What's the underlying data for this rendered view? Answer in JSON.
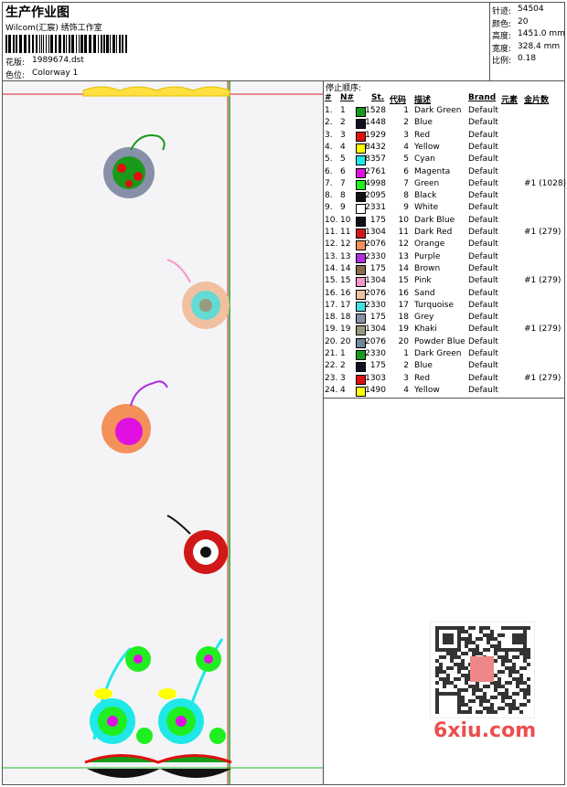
{
  "header": {
    "title": "生产作业图",
    "studio": "Wilcom(汇宸) 绣饰工作室",
    "design_label": "花版:",
    "design": "1989674.dst",
    "colorway_label": "色位:",
    "colorway": "Colorway 1"
  },
  "stats": [
    {
      "label": "针迹:",
      "value": "54504"
    },
    {
      "label": "颜色:",
      "value": "20"
    },
    {
      "label": "高度:",
      "value": "1451.0 mm"
    },
    {
      "label": "宽度:",
      "value": "328.4 mm"
    },
    {
      "label": "比例:",
      "value": "0.18"
    }
  ],
  "sequence": {
    "title": "停止顺序:",
    "columns": [
      "#",
      "N#",
      "St.",
      "代码",
      "描述",
      "Brand",
      "元素",
      "金片数"
    ],
    "rows": [
      {
        "num": "1.",
        "n": 1,
        "color": "#1a9a1a",
        "st": 1528,
        "code": 1,
        "desc": "Dark Green",
        "brand": "Default"
      },
      {
        "num": "2.",
        "n": 2,
        "color": "#111122",
        "st": 1448,
        "code": 2,
        "desc": "Blue",
        "brand": "Default"
      },
      {
        "num": "3.",
        "n": 3,
        "color": "#e01010",
        "st": 1929,
        "code": 3,
        "desc": "Red",
        "brand": "Default"
      },
      {
        "num": "4.",
        "n": 4,
        "color": "#ffff00",
        "st": 8432,
        "code": 4,
        "desc": "Yellow",
        "brand": "Default"
      },
      {
        "num": "5.",
        "n": 5,
        "color": "#20e8e8",
        "st": 8357,
        "code": 5,
        "desc": "Cyan",
        "brand": "Default"
      },
      {
        "num": "6.",
        "n": 6,
        "color": "#e010e0",
        "st": 2761,
        "code": 6,
        "desc": "Magenta",
        "brand": "Default"
      },
      {
        "num": "7.",
        "n": 7,
        "color": "#20ee20",
        "st": 4998,
        "code": 7,
        "desc": "Green",
        "brand": "Default",
        "elem": "#1 (1028)"
      },
      {
        "num": "8.",
        "n": 8,
        "color": "#111111",
        "st": 2095,
        "code": 8,
        "desc": "Black",
        "brand": "Default"
      },
      {
        "num": "9.",
        "n": 9,
        "color": "#ffffff",
        "st": 2331,
        "code": 9,
        "desc": "White",
        "brand": "Default"
      },
      {
        "num": "10.",
        "n": 10,
        "color": "#101018",
        "st": 175,
        "code": 10,
        "desc": "Dark Blue",
        "brand": "Default"
      },
      {
        "num": "11.",
        "n": 11,
        "color": "#d01818",
        "st": 1304,
        "code": 11,
        "desc": "Dark Red",
        "brand": "Default",
        "elem": "#1 (279)"
      },
      {
        "num": "12.",
        "n": 12,
        "color": "#f4905a",
        "st": 2076,
        "code": 12,
        "desc": "Orange",
        "brand": "Default"
      },
      {
        "num": "13.",
        "n": 13,
        "color": "#b030e0",
        "st": 2330,
        "code": 13,
        "desc": "Purple",
        "brand": "Default"
      },
      {
        "num": "14.",
        "n": 14,
        "color": "#8a6a4a",
        "st": 175,
        "code": 14,
        "desc": "Brown",
        "brand": "Default"
      },
      {
        "num": "15.",
        "n": 15,
        "color": "#f498c8",
        "st": 1304,
        "code": 15,
        "desc": "Pink",
        "brand": "Default",
        "elem": "#1 (279)"
      },
      {
        "num": "16.",
        "n": 16,
        "color": "#f0c0a0",
        "st": 2076,
        "code": 16,
        "desc": "Sand",
        "brand": "Default"
      },
      {
        "num": "17.",
        "n": 17,
        "color": "#40e0e0",
        "st": 2330,
        "code": 17,
        "desc": "Turquoise",
        "brand": "Default"
      },
      {
        "num": "18.",
        "n": 18,
        "color": "#8890a8",
        "st": 175,
        "code": 18,
        "desc": "Grey",
        "brand": "Default"
      },
      {
        "num": "19.",
        "n": 19,
        "color": "#9a9a80",
        "st": 1304,
        "code": 19,
        "desc": "Khaki",
        "brand": "Default",
        "elem": "#1 (279)"
      },
      {
        "num": "20.",
        "n": 20,
        "color": "#708898",
        "st": 2076,
        "code": 20,
        "desc": "Powder Blue",
        "brand": "Default"
      },
      {
        "num": "21.",
        "n": 1,
        "color": "#1a9a1a",
        "st": 2330,
        "code": 1,
        "desc": "Dark Green",
        "brand": "Default"
      },
      {
        "num": "22.",
        "n": 2,
        "color": "#111122",
        "st": 175,
        "code": 2,
        "desc": "Blue",
        "brand": "Default"
      },
      {
        "num": "23.",
        "n": 3,
        "color": "#e01010",
        "st": 1303,
        "code": 3,
        "desc": "Red",
        "brand": "Default",
        "elem": "#1 (279)"
      },
      {
        "num": "24.",
        "n": 4,
        "color": "#ffff00",
        "st": 1490,
        "code": 4,
        "desc": "Yellow",
        "brand": "Default"
      }
    ]
  },
  "watermark": "6xiu.com"
}
